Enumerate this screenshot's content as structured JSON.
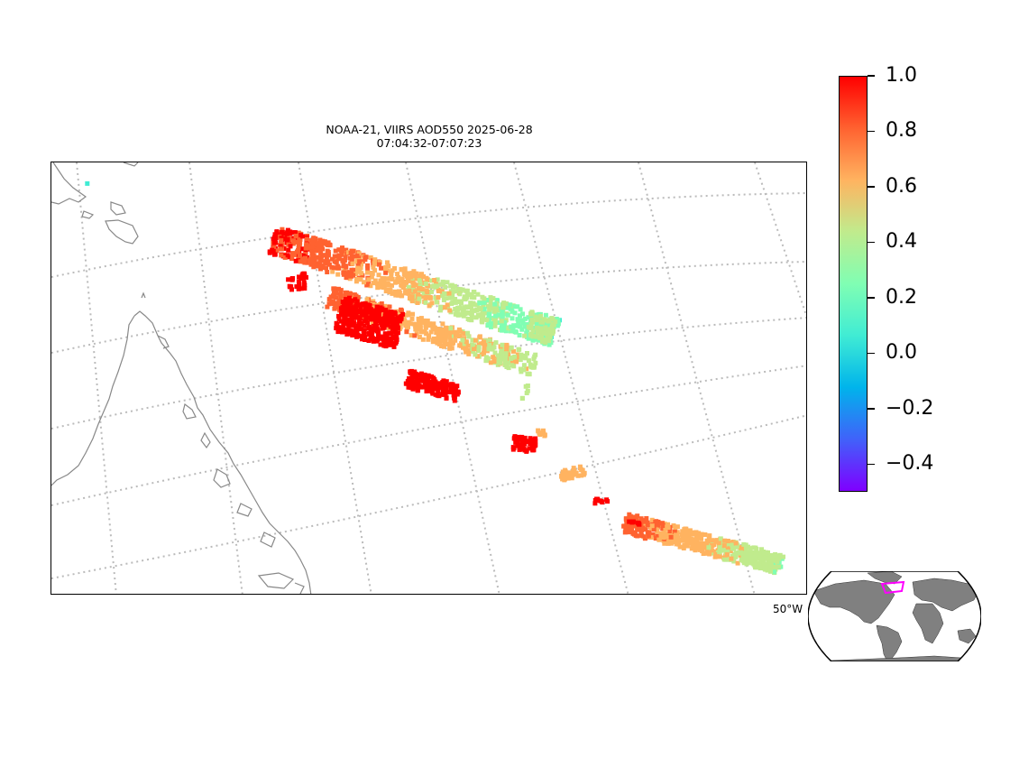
{
  "title": {
    "line1": "NOAA-21, VIIRS AOD550 2025-06-28",
    "line2": "07:04:32-07:07:23"
  },
  "map": {
    "lon_label": "50°W",
    "gridline_color": "#bbbbbb",
    "coastline_color": "#888888"
  },
  "colorbar": {
    "colormap": "rainbow",
    "vmin": -0.5,
    "vmax": 1.0,
    "ticks": [
      {
        "value": 1.0,
        "label": "1.0"
      },
      {
        "value": 0.8,
        "label": "0.8"
      },
      {
        "value": 0.6,
        "label": "0.6"
      },
      {
        "value": 0.4,
        "label": "0.4"
      },
      {
        "value": 0.2,
        "label": "0.2"
      },
      {
        "value": 0.0,
        "label": "0.0"
      },
      {
        "value": -0.2,
        "label": "−0.2"
      },
      {
        "value": -0.4,
        "label": "−0.4"
      }
    ],
    "colors": [
      "#7f00ff",
      "#4062fa",
      "#00b4eb",
      "#40ecd4",
      "#80feb3",
      "#c0eb8d",
      "#ffb360",
      "#ff6230",
      "#ff0000"
    ]
  },
  "inset": {
    "land_color": "#808080",
    "ocean_color": "#ffffff",
    "box_color": "#ff00ff"
  }
}
